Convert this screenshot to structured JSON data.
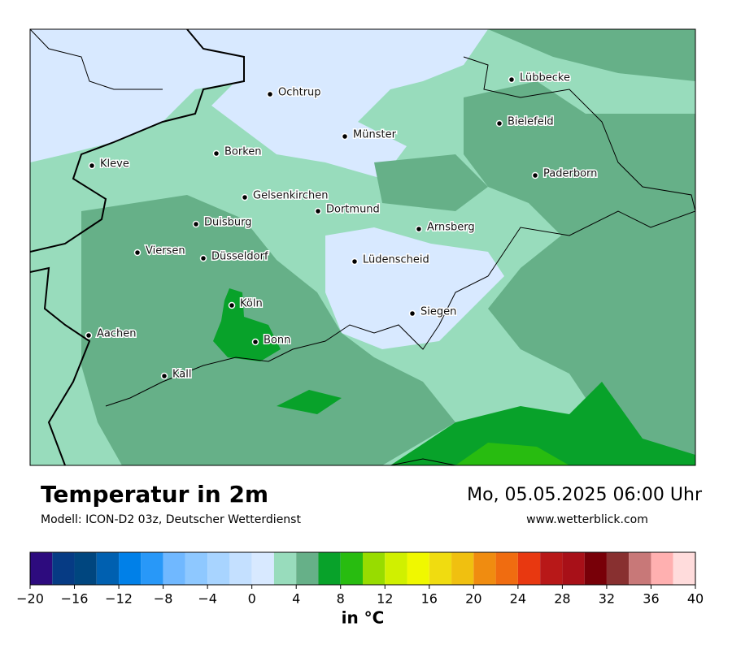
{
  "header": {
    "title": "Temperatur in 2m",
    "model": "Modell: ICON-D2 03z, Deutscher Wetterdienst",
    "datetime": "Mo, 05.05.2025 06:00 Uhr",
    "website": "www.wetterblick.com"
  },
  "map": {
    "cities": [
      "Ochtrup",
      "Münster",
      "Lübbecke",
      "Bielefeld",
      "Borken",
      "Kleve",
      "Paderborn",
      "Gelsenkirchen",
      "Dortmund",
      "Duisburg",
      "Arnsberg",
      "Viersen",
      "Düsseldorf",
      "Lüdenscheid",
      "Köln",
      "Siegen",
      "Aachen",
      "Bonn",
      "Kall"
    ]
  },
  "colorbar": {
    "bins": [
      -20,
      -18,
      -16,
      -14,
      -12,
      -10,
      -8,
      -6,
      -4,
      -2,
      0,
      2,
      4,
      6,
      8,
      10,
      12,
      14,
      16,
      18,
      20,
      22,
      24,
      26,
      28,
      30,
      32,
      34,
      36,
      38,
      40
    ],
    "colors": [
      "#2d0b7e",
      "#063b84",
      "#00467f",
      "#0060b0",
      "#0080e8",
      "#2898f8",
      "#70b8ff",
      "#8ec8ff",
      "#a8d4ff",
      "#c4e0ff",
      "#d8e9ff",
      "#98dcbc",
      "#66b088",
      "#08a22a",
      "#28bc10",
      "#98dc00",
      "#d0f000",
      "#f0f800",
      "#f0dc10",
      "#f0c010",
      "#f08c10",
      "#f06c10",
      "#e83810",
      "#b81818",
      "#a81018",
      "#780008",
      "#883030",
      "#c87878",
      "#ffb0b0",
      "#ffdcdc"
    ],
    "lim": [
      -20,
      40
    ],
    "ticks": [
      {
        "value": -20,
        "label": "−20"
      },
      {
        "value": -16,
        "label": "−16"
      },
      {
        "value": -12,
        "label": "−12"
      },
      {
        "value": -8,
        "label": "−8"
      },
      {
        "value": -4,
        "label": "−4"
      },
      0,
      4,
      8,
      12,
      16,
      20,
      24,
      28,
      32,
      36,
      40
    ],
    "label": "in °C"
  }
}
